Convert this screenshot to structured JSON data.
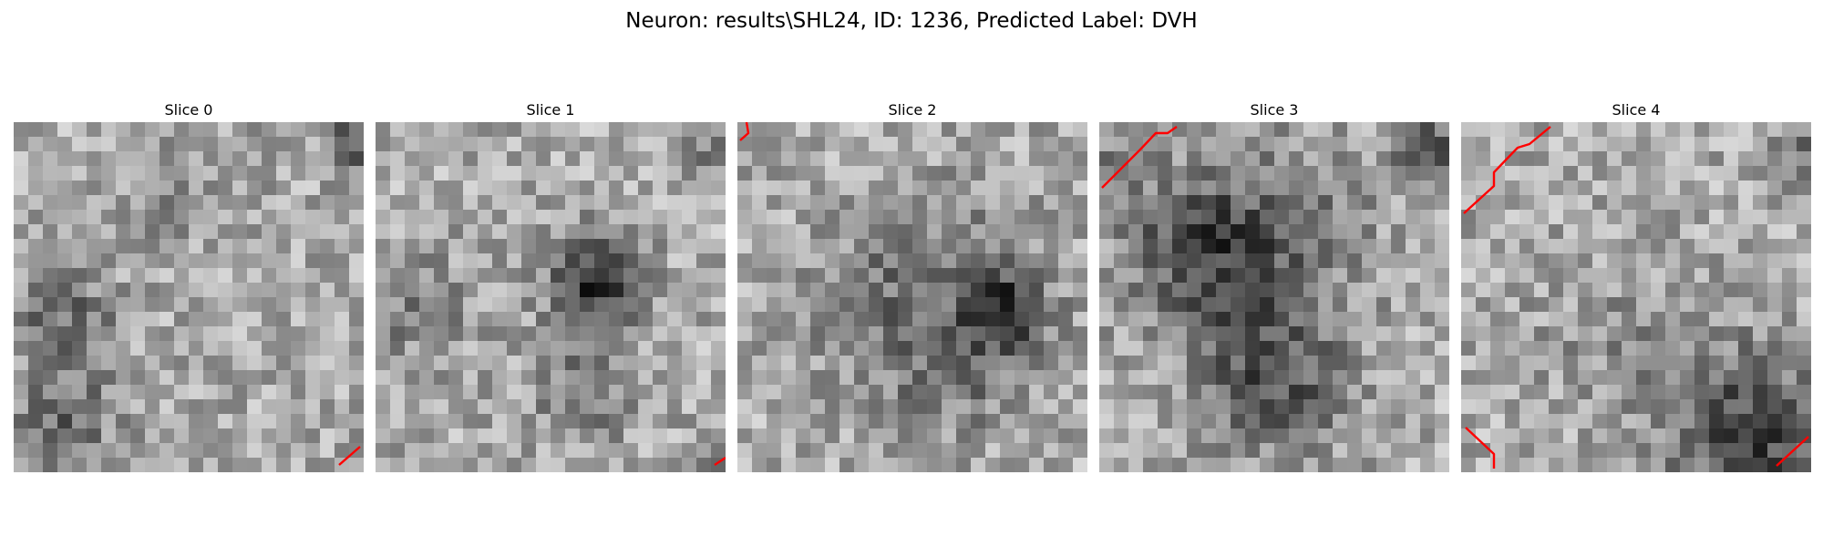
{
  "figure": {
    "title": "Neuron: results\\SHL24, ID: 1236, Predicted Label: DVH",
    "contour_color": "#ff0000",
    "colormap": "gray"
  },
  "slices": [
    {
      "label": "Slice 0"
    },
    {
      "label": "Slice 1"
    },
    {
      "label": "Slice 2"
    },
    {
      "label": "Slice 3"
    },
    {
      "label": "Slice 4"
    }
  ]
}
